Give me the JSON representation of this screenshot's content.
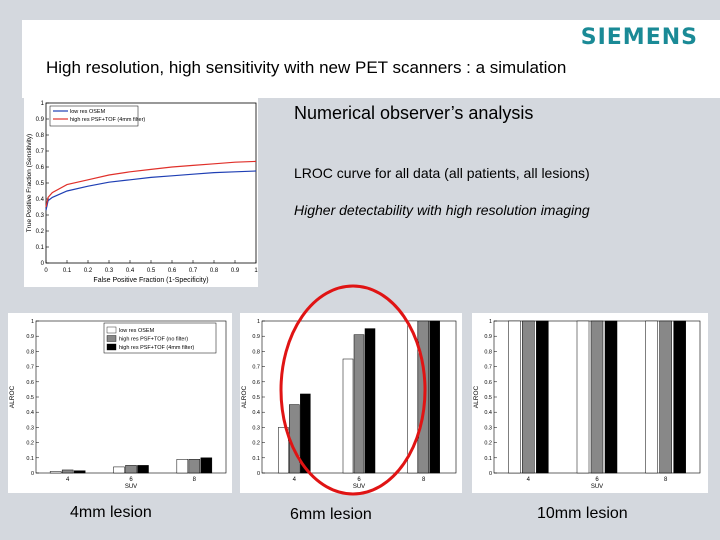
{
  "header": {
    "brand": "SIEMENS",
    "title": "High resolution, high sensitivity with new PET scanners : a simulation"
  },
  "right_text": {
    "heading": "Numerical observer’s analysis",
    "subheading": "LROC curve for all data (all patients, all lesions)",
    "note": "Higher detectability with high resolution imaging"
  },
  "captions": [
    "4mm lesion",
    "6mm lesion",
    "10mm lesion"
  ],
  "colors": {
    "brand": "#1a8a96",
    "low_res": "#1f3fb4",
    "high_res": "#e0302a",
    "circle": "#e01414"
  },
  "chart_data": [
    {
      "type": "line",
      "xlabel": "False Positive Fraction (1-Specificity)",
      "ylabel": "True Positive Fraction (Sensitivity)",
      "xlim": [
        0,
        1
      ],
      "ylim": [
        0,
        1
      ],
      "x_ticks": [
        "0",
        "0.1",
        "0.2",
        "0.3",
        "0.4",
        "0.5",
        "0.6",
        "0.7",
        "0.8",
        "0.9",
        "1"
      ],
      "y_ticks": [
        "0",
        "0.1",
        "0.2",
        "0.3",
        "0.4",
        "0.5",
        "0.6",
        "0.7",
        "0.8",
        "0.9",
        "1"
      ],
      "legend": "top-left",
      "series": [
        {
          "name": "low res OSEM",
          "color": "#1f3fb4",
          "x": [
            0,
            0.01,
            0.03,
            0.1,
            0.2,
            0.3,
            0.4,
            0.5,
            0.6,
            0.7,
            0.8,
            0.9,
            1.0
          ],
          "y": [
            0.33,
            0.39,
            0.41,
            0.45,
            0.48,
            0.505,
            0.52,
            0.535,
            0.545,
            0.555,
            0.565,
            0.57,
            0.575
          ]
        },
        {
          "name": "high res PSF+TOF (4mm filter)",
          "color": "#e0302a",
          "x": [
            0,
            0.01,
            0.03,
            0.1,
            0.2,
            0.3,
            0.4,
            0.5,
            0.6,
            0.7,
            0.8,
            0.9,
            1.0
          ],
          "y": [
            0.35,
            0.41,
            0.44,
            0.49,
            0.52,
            0.55,
            0.57,
            0.585,
            0.6,
            0.61,
            0.62,
            0.63,
            0.635
          ]
        }
      ]
    },
    {
      "type": "bar",
      "caption": "4mm lesion",
      "xlabel": "SUV",
      "ylabel": "ALROC",
      "categories": [
        "4",
        "6",
        "8"
      ],
      "ylim": [
        0,
        1
      ],
      "y_ticks": [
        "0",
        "0.1",
        "0.2",
        "0.3",
        "0.4",
        "0.5",
        "0.6",
        "0.7",
        "0.8",
        "0.9",
        "1"
      ],
      "legend": "top-center",
      "series": [
        {
          "name": "low res OSEM",
          "color": "#ffffff",
          "values": [
            0.01,
            0.04,
            0.09
          ]
        },
        {
          "name": "high res PSF+TOF (no filter)",
          "color": "#888888",
          "values": [
            0.02,
            0.05,
            0.09
          ]
        },
        {
          "name": "high res PSF+TOF (4mm filter)",
          "color": "#000000",
          "values": [
            0.015,
            0.05,
            0.1
          ]
        }
      ]
    },
    {
      "type": "bar",
      "caption": "6mm lesion",
      "xlabel": "SUV",
      "ylabel": "ALROC",
      "categories": [
        "4",
        "6",
        "8"
      ],
      "ylim": [
        0,
        1
      ],
      "y_ticks": [
        "0",
        "0.1",
        "0.2",
        "0.3",
        "0.4",
        "0.5",
        "0.6",
        "0.7",
        "0.8",
        "0.9",
        "1"
      ],
      "series": [
        {
          "name": "low res OSEM",
          "color": "#ffffff",
          "values": [
            0.3,
            0.75,
            1.0
          ]
        },
        {
          "name": "high res PSF+TOF (no filter)",
          "color": "#888888",
          "values": [
            0.45,
            0.91,
            1.0
          ]
        },
        {
          "name": "high res PSF+TOF (4mm filter)",
          "color": "#000000",
          "values": [
            0.52,
            0.95,
            1.0
          ]
        }
      ]
    },
    {
      "type": "bar",
      "caption": "10mm lesion",
      "xlabel": "SUV",
      "ylabel": "ALROC",
      "categories": [
        "4",
        "6",
        "8"
      ],
      "ylim": [
        0,
        1
      ],
      "y_ticks": [
        "0",
        "0.1",
        "0.2",
        "0.3",
        "0.4",
        "0.5",
        "0.6",
        "0.7",
        "0.8",
        "0.9",
        "1"
      ],
      "series": [
        {
          "name": "low res OSEM",
          "color": "#ffffff",
          "values": [
            1.0,
            1.0,
            1.0
          ]
        },
        {
          "name": "high res PSF+TOF (no filter)",
          "color": "#888888",
          "values": [
            1.0,
            1.0,
            1.0
          ]
        },
        {
          "name": "high res PSF+TOF (4mm filter)",
          "color": "#000000",
          "values": [
            1.0,
            1.0,
            1.0
          ]
        }
      ]
    }
  ]
}
